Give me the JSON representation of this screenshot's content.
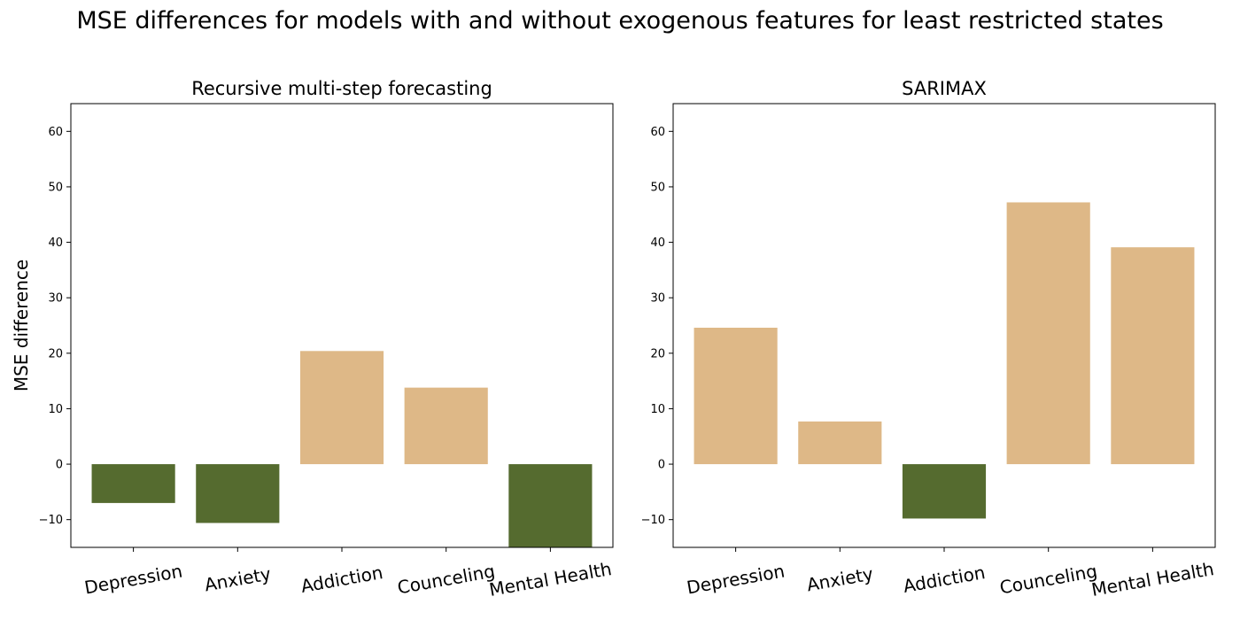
{
  "figure": {
    "title": "MSE differences for models with and without exogenous features for least restricted states"
  },
  "colors": {
    "positive": "#DEB887",
    "negative": "#556B2F",
    "axis": "#000000"
  },
  "chart_data": [
    {
      "type": "bar",
      "title": "Recursive multi-step forecasting",
      "xlabel": "",
      "ylabel": "MSE difference",
      "categories": [
        "Depression",
        "Anxiety",
        "Addiction",
        "Counceling",
        "Mental Health"
      ],
      "values": [
        -7.0,
        -10.6,
        20.4,
        13.8,
        -15.5
      ],
      "ylim": [
        -15,
        65
      ],
      "yticks": [
        -10,
        0,
        10,
        20,
        30,
        40,
        50,
        60
      ],
      "grid": false
    },
    {
      "type": "bar",
      "title": "SARIMAX",
      "xlabel": "",
      "ylabel": "",
      "categories": [
        "Depression",
        "Anxiety",
        "Addiction",
        "Counceling",
        "Mental Health"
      ],
      "values": [
        24.6,
        7.7,
        -9.8,
        47.2,
        39.1
      ],
      "ylim": [
        -15,
        65
      ],
      "yticks": [
        -10,
        0,
        10,
        20,
        30,
        40,
        50,
        60
      ],
      "grid": false
    }
  ]
}
